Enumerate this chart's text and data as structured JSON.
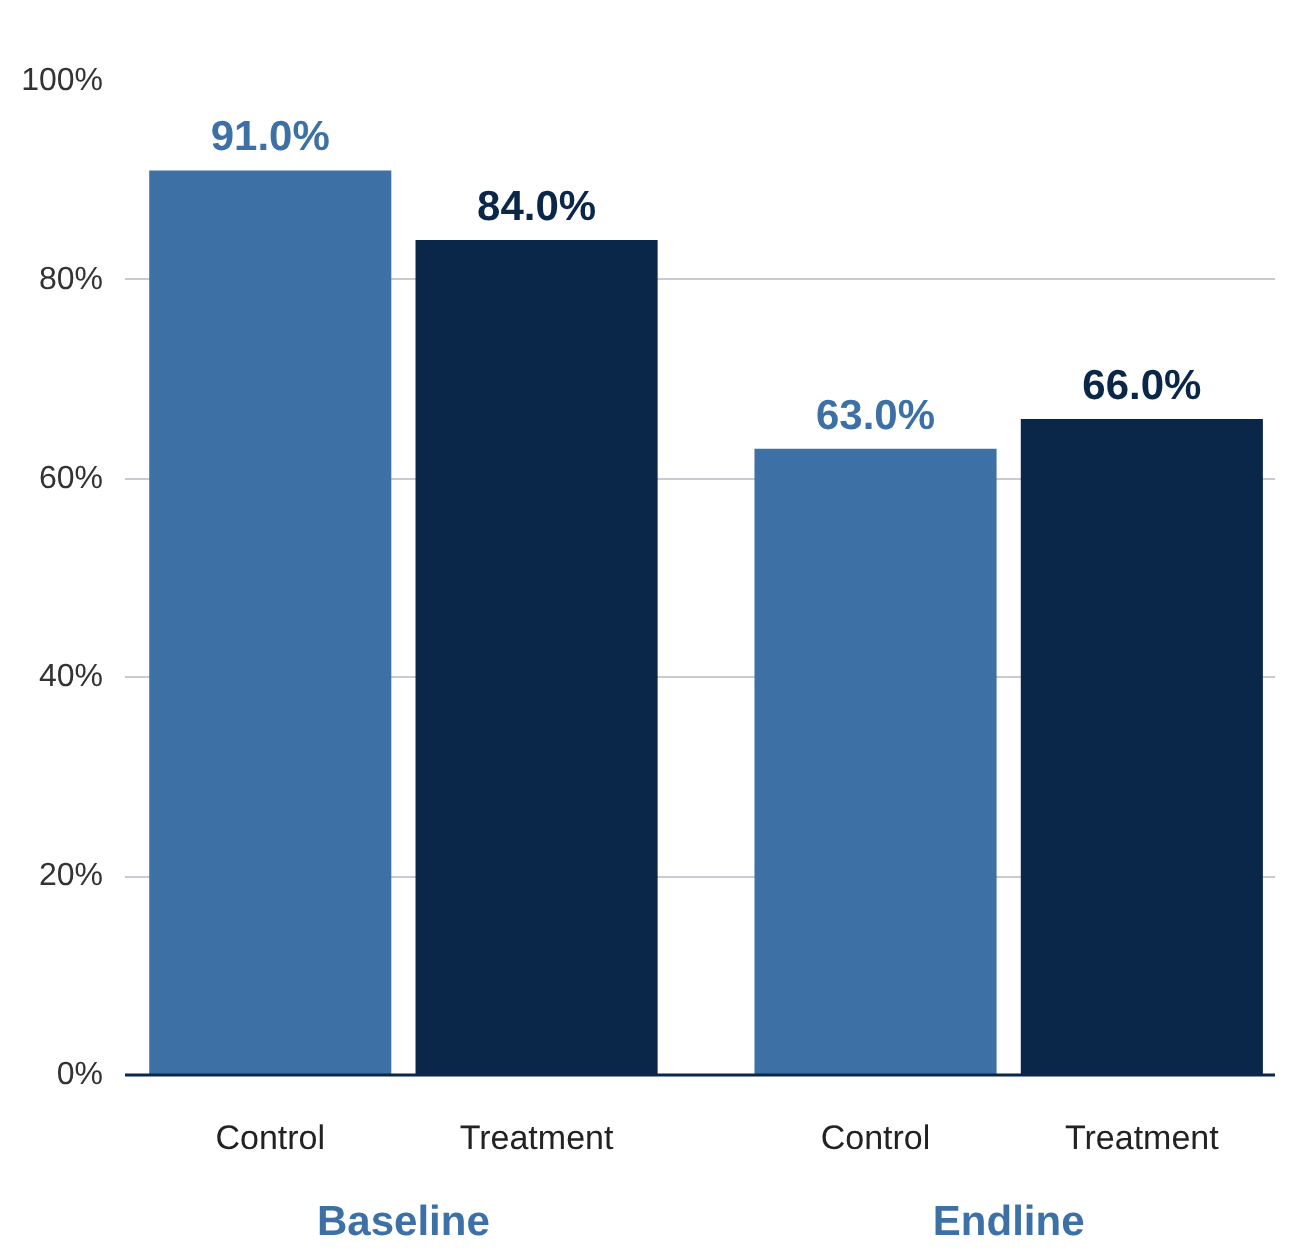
{
  "chart_data": {
    "type": "bar",
    "categories": [
      "Baseline",
      "Endline"
    ],
    "series": [
      {
        "name": "Control",
        "color": "#3d71a6",
        "values": [
          91.0,
          63.0
        ],
        "value_labels": [
          "91.0%",
          "63.0%"
        ]
      },
      {
        "name": "Treatment",
        "color": "#0a2749",
        "values": [
          84.0,
          66.0
        ],
        "value_labels": [
          "84.0%",
          "66.0%"
        ]
      }
    ],
    "ylim": [
      0,
      100
    ],
    "yticks": [
      {
        "value": 0,
        "label": "0%"
      },
      {
        "value": 20,
        "label": "20%"
      },
      {
        "value": 40,
        "label": "40%"
      },
      {
        "value": 60,
        "label": "60%"
      },
      {
        "value": 80,
        "label": "80%"
      },
      {
        "value": 100,
        "label": "100%"
      }
    ],
    "grid": "y"
  }
}
